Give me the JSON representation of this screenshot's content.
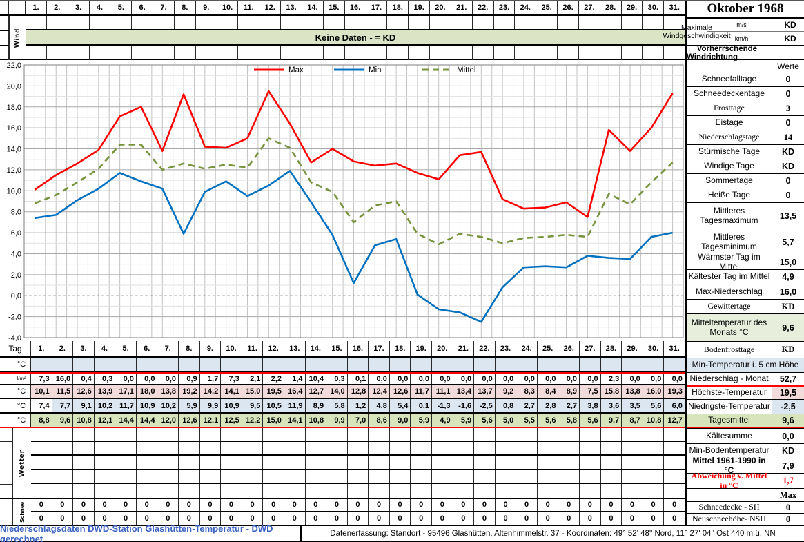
{
  "title": "Oktober 1968",
  "top": {
    "wind_label": "Wind",
    "days": [
      "1.",
      "2.",
      "3.",
      "4.",
      "5.",
      "6.",
      "7.",
      "8.",
      "9.",
      "10.",
      "11.",
      "12.",
      "13.",
      "14.",
      "15.",
      "16.",
      "17.",
      "18.",
      "19.",
      "20.",
      "21.",
      "22.",
      "23.",
      "24.",
      "25.",
      "26.",
      "27.",
      "28.",
      "29.",
      "30.",
      "31."
    ],
    "banner": "Keine Daten -  = KD",
    "speed_units": [
      "m/s",
      "km/h"
    ],
    "speed_label": "Maximale Windgeschwindigkeit",
    "speed_values": [
      "KD",
      "KD"
    ],
    "direction_label": "←  Vorherrschende Windrichtung"
  },
  "chart_data": {
    "type": "line",
    "title": "",
    "xlabel": "",
    "ylabel": "",
    "categories": [
      "1.",
      "2.",
      "3.",
      "4.",
      "5.",
      "6.",
      "7.",
      "8.",
      "9.",
      "10.",
      "11.",
      "12.",
      "13.",
      "14.",
      "15.",
      "16.",
      "17.",
      "18.",
      "19.",
      "20.",
      "21.",
      "22.",
      "23.",
      "24.",
      "25.",
      "26.",
      "27.",
      "28.",
      "29.",
      "30.",
      "31."
    ],
    "series": [
      {
        "name": "Max",
        "color": "#ff0000",
        "dash": false,
        "values": [
          10.1,
          11.5,
          12.6,
          13.9,
          17.1,
          18.0,
          13.8,
          19.2,
          14.2,
          14.1,
          15.0,
          19.5,
          16.4,
          12.7,
          14.0,
          12.8,
          12.4,
          12.6,
          11.7,
          11.1,
          13.4,
          13.7,
          9.2,
          8.3,
          8.4,
          8.9,
          7.5,
          15.8,
          13.8,
          16.0,
          19.3
        ]
      },
      {
        "name": "Min",
        "color": "#0070c0",
        "dash": false,
        "values": [
          7.4,
          7.7,
          9.1,
          10.2,
          11.7,
          10.9,
          10.2,
          5.9,
          9.9,
          10.9,
          9.5,
          10.5,
          11.9,
          8.9,
          5.8,
          1.2,
          4.8,
          5.4,
          0.1,
          -1.3,
          -1.6,
          -2.5,
          0.8,
          2.7,
          2.8,
          2.7,
          3.8,
          3.6,
          3.5,
          5.6,
          6.0
        ]
      },
      {
        "name": "Mittel",
        "color": "#77933c",
        "dash": true,
        "values": [
          8.8,
          9.6,
          10.8,
          12.1,
          14.4,
          14.4,
          12.0,
          12.6,
          12.1,
          12.5,
          12.2,
          15.0,
          14.1,
          10.8,
          9.9,
          7.0,
          8.6,
          9.0,
          5.9,
          4.9,
          5.9,
          5.6,
          5.0,
          5.5,
          5.6,
          5.8,
          5.6,
          9.7,
          8.7,
          10.8,
          12.7
        ]
      }
    ],
    "ylim": [
      -4,
      22
    ],
    "ytick_step": 2,
    "grid": true,
    "legend_position": "top-center"
  },
  "right_panel": {
    "header": {
      "label": "",
      "value": "Werte"
    },
    "rows": [
      {
        "label": "Schneefalltage",
        "value": "0"
      },
      {
        "label": "Schneedeckentage",
        "value": "0"
      },
      {
        "label": "Frosttage",
        "value": "3",
        "serif": true
      },
      {
        "label": "Eistage",
        "value": "0"
      },
      {
        "label": "Niederschlagstage",
        "value": "14",
        "serif": true
      },
      {
        "label": "Stürmische Tage",
        "value": "KD"
      },
      {
        "label": "Windige Tage",
        "value": "KD"
      },
      {
        "label": "Sommertage",
        "value": "0"
      },
      {
        "label": "Heiße Tage",
        "value": "0"
      },
      {
        "label": "Mittleres Tagesmaximum",
        "value": "13,5"
      },
      {
        "label": "Mittleres Tagesminimum",
        "value": "5,7"
      },
      {
        "label": "Wärmster Tag im Mittel",
        "value": "15,0"
      },
      {
        "label": "Kältester Tag im Mittel",
        "value": "4,9"
      },
      {
        "label": "Max-Niederschlag",
        "value": "16,0"
      },
      {
        "label": "Gewittertage",
        "value": "KD",
        "serif": true
      },
      {
        "label": "Mitteltemperatur des Monats °C",
        "value": "9,6",
        "bg": "#e7eedb"
      },
      {
        "label": "Bodenfrosttage",
        "value": "KD",
        "serif": true
      },
      {
        "label": "Min-Temperatur i. 5 cm Höhe",
        "value": null,
        "full": true,
        "bg": "#dce6f1"
      },
      {
        "label": "Niederschlag - Monat",
        "value": "52,7"
      },
      {
        "label": "Höchste-Temperatur",
        "value": "19,5",
        "value_bg": "#f2dcdb",
        "red_top": true
      },
      {
        "label": "Niedrigste-Temperatur",
        "value": "-2,5",
        "value_bg": "#dce6f1"
      },
      {
        "label": "Tagesmittel",
        "value": "9,6",
        "bg": "#d7e4bc",
        "red_bottom": true
      },
      {
        "label": "Kältesumme",
        "value": "0,0"
      },
      {
        "label": "Min-Bodentemperatur",
        "value": "KD"
      },
      {
        "label": "Mittel 1961-1990 in °C",
        "value": "7,9",
        "bold_label": true
      },
      {
        "label": "Abweichung v. Mittel in °C",
        "value": "1,7",
        "red_text": true,
        "serif": true,
        "bold_label": true
      },
      {
        "label": "",
        "value": "Max",
        "serif": true
      },
      {
        "label": "Schneedecke -   SH",
        "value": "0",
        "serif": true
      },
      {
        "label": "Neuschneehöhe- NSH",
        "value": "0",
        "serif": true
      }
    ]
  },
  "table": {
    "day_header_label": "Tag",
    "precip_values": [
      7.3,
      16.0,
      0.4,
      0.3,
      0.0,
      0.0,
      0.0,
      0.9,
      1.7,
      7.3,
      2.1,
      2.2,
      1.4,
      10.4,
      0.3,
      0.1,
      0.0,
      0.0,
      0.0,
      0.0,
      0.0,
      0.0,
      0.0,
      0.0,
      0.0,
      0.0,
      0.0,
      2.3,
      0.0,
      0.0,
      0.0
    ],
    "rows": [
      {
        "unit": "°C",
        "kind": "empty",
        "bg": "#dce6f1"
      },
      {
        "unit": "l/m²",
        "kind": "precip",
        "bg": "#ffffff",
        "red_top": true
      },
      {
        "unit": "°C",
        "kind": "max",
        "bg": "#f2dcdb"
      },
      {
        "unit": "°C",
        "kind": "min",
        "bg": "#dce6f1",
        "first_cell_bg": "#ffffff"
      },
      {
        "unit": "°C",
        "kind": "mittel",
        "bg": "#d7e4bc",
        "red_bottom": true
      }
    ]
  },
  "wetter": {
    "label": "Wetter",
    "empty_rows": 5
  },
  "schnee": {
    "label": "Schnee",
    "rows": [
      [
        "0",
        "0",
        "0",
        "0",
        "0",
        "0",
        "0",
        "0",
        "0",
        "0",
        "0",
        "0",
        "0",
        "0",
        "0",
        "0",
        "0",
        "0",
        "0",
        "0",
        "0",
        "0",
        "0",
        "0",
        "0",
        "0",
        "0",
        "0",
        "0",
        "0",
        "0"
      ],
      [
        "0",
        "0",
        "0",
        "0",
        "0",
        "0",
        "0",
        "0",
        "0",
        "0",
        "0",
        "0",
        "0",
        "0",
        "0",
        "0",
        "0",
        "0",
        "0",
        "0",
        "0",
        "0",
        "0",
        "0",
        "0",
        "0",
        "0",
        "0",
        "0",
        "0",
        "0"
      ]
    ]
  },
  "footer": {
    "left": "Niederschlagsdaten DWD-Station Glashütten-Temperatur -  DWD gerechnet",
    "right": "Datenerfassung:  Standort -  95496  Glashütten, Altenhimmelstr. 37 - Koordinaten:  49° 52' 48'' Nord,   11° 27' 04'' Ost   440 m ü. NN"
  },
  "colors": {
    "banner_green": "#dbe5c6",
    "row_green": "#d7e4bc",
    "pale_green": "#e7eedb",
    "light_blue": "#dce6f1",
    "pink": "#f2dcdb",
    "footer_blue": "#3b63c4",
    "accent_red": "#ff0000"
  }
}
